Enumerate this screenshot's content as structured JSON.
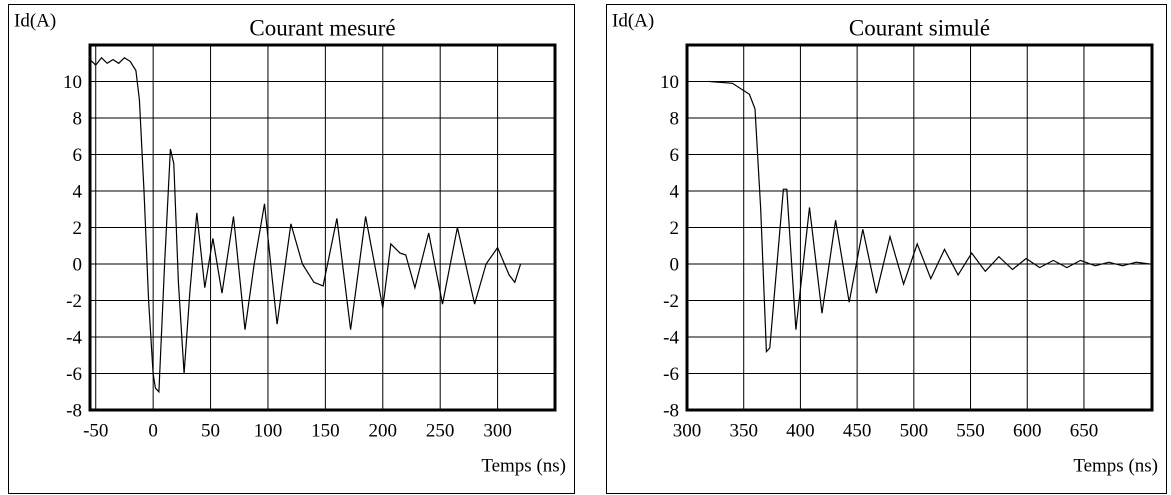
{
  "chart_data": [
    {
      "type": "line",
      "title": "Courant mesuré",
      "y_label": "Id(A)",
      "x_label": "Temps (ns)",
      "x": [
        -55,
        -50,
        -45,
        -40,
        -35,
        -30,
        -25,
        -20,
        -15,
        -12,
        -8,
        -4,
        0,
        2,
        5,
        10,
        15,
        18,
        22,
        27,
        32,
        38,
        45,
        52,
        60,
        70,
        80,
        88,
        97,
        104,
        108,
        120,
        130,
        140,
        148,
        160,
        172,
        185,
        200,
        207,
        215,
        220,
        228,
        240,
        252,
        265,
        280,
        290,
        300,
        310,
        315,
        320
      ],
      "series": [
        {
          "color": "#000000",
          "values": [
            11.2,
            10.9,
            11.3,
            11.0,
            11.2,
            11.0,
            11.3,
            11.1,
            10.6,
            9.0,
            4.0,
            -2.0,
            -6.0,
            -6.8,
            -7.0,
            0.0,
            6.3,
            5.5,
            -1.0,
            -6.0,
            -1.5,
            2.8,
            -1.3,
            1.4,
            -1.6,
            2.6,
            -3.6,
            0.0,
            3.3,
            -1.0,
            -3.3,
            2.2,
            0.0,
            -1.0,
            -1.2,
            2.5,
            -3.6,
            2.6,
            -2.4,
            1.1,
            0.6,
            0.5,
            -1.3,
            1.7,
            -2.2,
            2.0,
            -2.2,
            0.0,
            0.9,
            -0.6,
            -1.0,
            0.0
          ]
        }
      ],
      "xlim": [
        -55,
        350
      ],
      "ylim": [
        -8,
        12
      ],
      "xticks": [
        -50,
        0,
        50,
        100,
        150,
        200,
        250,
        300
      ],
      "yticks": [
        -8,
        -6,
        -4,
        -2,
        0,
        2,
        4,
        6,
        8,
        10
      ],
      "grid": true
    },
    {
      "type": "line",
      "title": "Courant simulé",
      "y_label": "Id(A)",
      "x_label": "Temps (ns)",
      "x": [
        320,
        340,
        355,
        360,
        365,
        370,
        373,
        385,
        388,
        396,
        408,
        419,
        431,
        443,
        455,
        467,
        479,
        491,
        503,
        515,
        527,
        539,
        551,
        563,
        575,
        587,
        599,
        611,
        623,
        635,
        647,
        660,
        672,
        684,
        696,
        708
      ],
      "series": [
        {
          "color": "#000000",
          "values": [
            10.0,
            9.9,
            9.3,
            8.5,
            3.0,
            -4.8,
            -4.6,
            4.1,
            4.1,
            -3.6,
            3.1,
            -2.7,
            2.4,
            -2.1,
            1.9,
            -1.6,
            1.5,
            -1.1,
            1.1,
            -0.8,
            0.8,
            -0.6,
            0.6,
            -0.4,
            0.4,
            -0.3,
            0.3,
            -0.2,
            0.2,
            -0.2,
            0.2,
            -0.1,
            0.1,
            -0.1,
            0.1,
            0.0
          ]
        }
      ],
      "xlim": [
        300,
        710
      ],
      "ylim": [
        -8,
        12
      ],
      "xticks": [
        300,
        350,
        400,
        450,
        500,
        550,
        600,
        650
      ],
      "yticks": [
        -8,
        -6,
        -4,
        -2,
        0,
        2,
        4,
        6,
        8,
        10
      ],
      "grid": true
    }
  ]
}
